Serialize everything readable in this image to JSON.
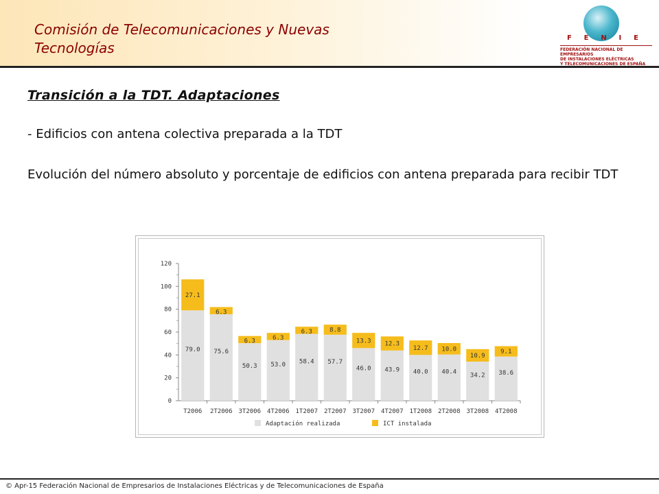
{
  "header": {
    "title": "Comisión de Telecomunicaciones y Nuevas Tecnologías",
    "logo": {
      "letters": [
        "F",
        "E",
        "N",
        "I",
        "E"
      ],
      "subtitle_lines": [
        "FEDERACIÓN NACIONAL DE EMPRESARIOS",
        "DE INSTALACIONES ELÉCTRICAS",
        "Y TELECOMUNICACIONES DE ESPAÑA"
      ]
    }
  },
  "content": {
    "section_title": "Transición a la TDT. Adaptaciones",
    "bullet": "- Edificios con antena colectiva preparada a la TDT",
    "paragraph": "Evolución del número absoluto y porcentaje de edificios con antena preparada para recibir TDT"
  },
  "chart_data": {
    "type": "bar",
    "stacked": true,
    "categories": [
      "T2006",
      "2T2006",
      "3T2006",
      "4T2006",
      "1T2007",
      "2T2007",
      "3T2007",
      "4T2007",
      "1T2008",
      "2T2008",
      "3T2008",
      "4T2008"
    ],
    "series": [
      {
        "name": "Adaptación realizada",
        "color": "#e0e0e0",
        "values": [
          79.0,
          75.6,
          50.3,
          53.0,
          58.4,
          57.7,
          46.0,
          43.9,
          40.0,
          40.4,
          34.2,
          38.6
        ]
      },
      {
        "name": "ICT instalada",
        "color": "#f5bc1c",
        "values": [
          27.1,
          6.3,
          6.3,
          6.3,
          6.3,
          8.8,
          13.3,
          12.3,
          12.7,
          10.0,
          10.9,
          9.1
        ]
      }
    ],
    "data_labels": [
      [
        "79.0",
        "75.6",
        "50.3",
        "53.0",
        "58.4",
        "57.7",
        "46.0",
        "43.9",
        "40.0",
        "40.4",
        "34.2",
        "38.6"
      ],
      [
        "27.1",
        "6.3",
        "6.3",
        "6.3",
        "6.3",
        "8.8",
        "13.3",
        "12.3",
        "12.7",
        "10.0",
        "10.9",
        "9.1"
      ]
    ],
    "ylim": [
      0,
      120
    ],
    "yticks": [
      "0",
      "20",
      "40",
      "60",
      "80",
      "100",
      "120"
    ],
    "legend_position": "bottom-center"
  },
  "footer": {
    "text": "© Apr-15 Federación Nacional de Empresarios de Instalaciones Eléctricas y de Telecomunicaciones de España"
  }
}
